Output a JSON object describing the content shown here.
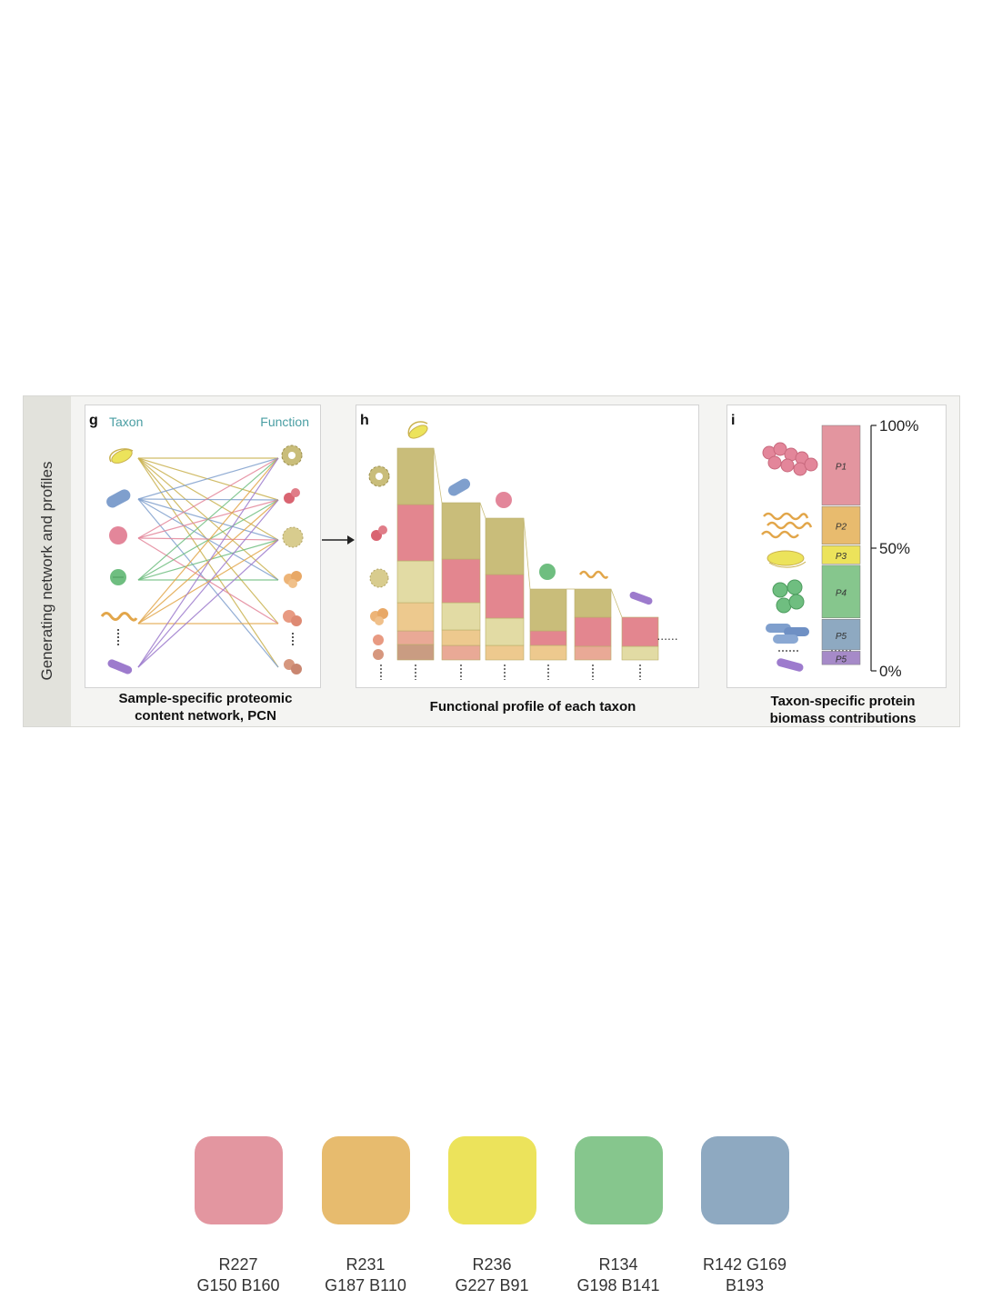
{
  "figure": {
    "side_title": "Generating network and profiles",
    "panel_g": {
      "letter": "g",
      "left_heading": "Taxon",
      "right_heading": "Function",
      "caption_line1": "Sample-specific proteomic",
      "caption_line2": "content network, PCN"
    },
    "panel_h": {
      "letter": "h",
      "caption": "Functional profile of each taxon",
      "ellipsis": "......"
    },
    "panel_i": {
      "letter": "i",
      "axis_ticks": [
        "100%",
        "50%",
        "0%"
      ],
      "segments": [
        {
          "label": "P1",
          "fraction": 0.33,
          "color": "#e3959f"
        },
        {
          "label": "P2",
          "fraction": 0.16,
          "color": "#e8bb6e"
        },
        {
          "label": "P3",
          "fraction": 0.08,
          "color": "#ece35b"
        },
        {
          "label": "P4",
          "fraction": 0.22,
          "color": "#86c68d"
        },
        {
          "label": "P5",
          "fraction": 0.13,
          "color": "#8ea9c1"
        },
        {
          "label": "P5",
          "fraction": 0.06,
          "color": "#a68ac8"
        }
      ],
      "caption_line1": "Taxon-specific protein",
      "caption_line2": "biomass contributions"
    }
  },
  "palette": [
    {
      "color": "#e396a0",
      "line1": "R227",
      "line2": "G150 B160"
    },
    {
      "color": "#e7bb6e",
      "line1": "R231",
      "line2": "G187 B110"
    },
    {
      "color": "#ece35b",
      "line1": "R236",
      "line2": "G227 B91"
    },
    {
      "color": "#86c68d",
      "line1": "R134",
      "line2": "G198 B141"
    },
    {
      "color": "#8ea9c1",
      "line1": "R142 G169",
      "line2": "B193"
    }
  ]
}
